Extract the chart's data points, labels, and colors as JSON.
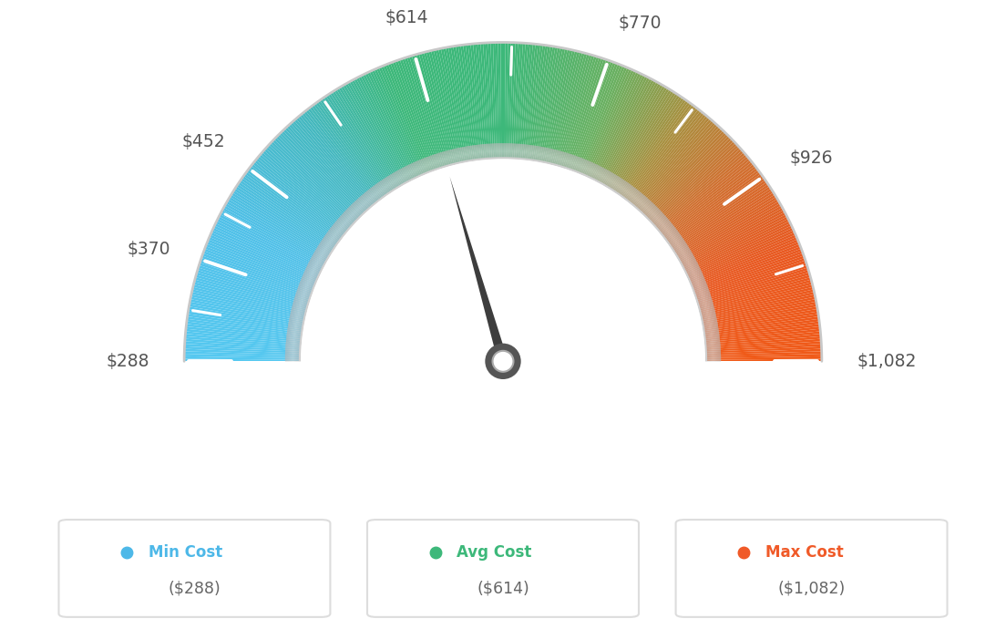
{
  "min_val": 288,
  "avg_val": 614,
  "max_val": 1082,
  "tick_labels": [
    "$288",
    "$370",
    "$452",
    "$614",
    "$770",
    "$926",
    "$1,082"
  ],
  "tick_values": [
    288,
    370,
    452,
    614,
    770,
    926,
    1082
  ],
  "color_min": "#4db8e8",
  "color_avg": "#3db87a",
  "color_max": "#f05a28",
  "legend_min_label": "Min Cost",
  "legend_avg_label": "Avg Cost",
  "legend_max_label": "Max Cost",
  "legend_min_val": "($288)",
  "legend_avg_val": "($614)",
  "legend_max_val": "($1,082)",
  "background_color": "#ffffff",
  "colors_gradient": [
    [
      0.0,
      "#55c8f0"
    ],
    [
      0.15,
      "#50c0e8"
    ],
    [
      0.28,
      "#45b8c0"
    ],
    [
      0.38,
      "#3db87a"
    ],
    [
      0.5,
      "#3db87a"
    ],
    [
      0.62,
      "#6ab060"
    ],
    [
      0.7,
      "#a89040"
    ],
    [
      0.78,
      "#d07030"
    ],
    [
      0.88,
      "#e85820"
    ],
    [
      1.0,
      "#f05a18"
    ]
  ]
}
